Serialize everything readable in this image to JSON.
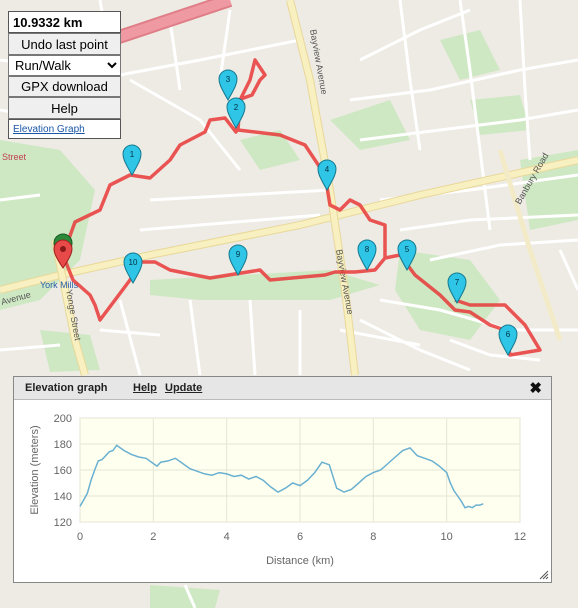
{
  "panel": {
    "distance": "10.9332 km",
    "undo_label": "Undo last point",
    "mode_selected": "Run/Walk",
    "mode_options": [
      "Run/Walk"
    ],
    "gpx_label": "GPX download",
    "help_label": "Help",
    "elevation_link": "Elevation Graph"
  },
  "map": {
    "street_labels": [
      "Bayview Avenue",
      "Bayview Avenue",
      "Yonge Street",
      "York Mills",
      "Banbury Road",
      "Avenue",
      "Street"
    ],
    "markers": [
      "1",
      "2",
      "3",
      "4",
      "5",
      "6",
      "7",
      "8",
      "9",
      "10"
    ],
    "route_color": "#e83a3a",
    "marker_color": "#2ec5e6"
  },
  "dialog": {
    "title": "Elevation graph",
    "help": "Help",
    "update": "Update",
    "close_icon": "close-icon"
  },
  "chart_data": {
    "type": "line",
    "title": "",
    "xlabel": "Distance (km)",
    "ylabel": "Elevation (meters)",
    "xlim": [
      0,
      12
    ],
    "ylim": [
      120,
      200
    ],
    "x_ticks": [
      0,
      2,
      4,
      6,
      8,
      10,
      12
    ],
    "y_ticks": [
      120,
      140,
      160,
      180,
      200
    ],
    "grid": true,
    "series": [
      {
        "color": "#6ab0d0",
        "x": [
          0,
          0.1,
          0.2,
          0.3,
          0.4,
          0.5,
          0.6,
          0.7,
          0.8,
          0.9,
          1.0,
          1.1,
          1.2,
          1.4,
          1.6,
          1.8,
          2.0,
          2.1,
          2.2,
          2.4,
          2.6,
          2.8,
          3.0,
          3.2,
          3.4,
          3.6,
          3.8,
          4.0,
          4.2,
          4.4,
          4.6,
          4.8,
          5.0,
          5.2,
          5.4,
          5.6,
          5.8,
          6.0,
          6.2,
          6.4,
          6.6,
          6.8,
          7.0,
          7.2,
          7.4,
          7.6,
          7.8,
          8.0,
          8.2,
          8.4,
          8.6,
          8.8,
          9.0,
          9.2,
          9.4,
          9.6,
          9.8,
          10.0,
          10.1,
          10.2,
          10.3,
          10.4,
          10.5,
          10.6,
          10.7,
          10.8,
          10.9,
          11.0
        ],
        "y": [
          132,
          137,
          142,
          152,
          160,
          167,
          168,
          171,
          174,
          175,
          179,
          177,
          175,
          172,
          170,
          169,
          165,
          163,
          166,
          167,
          169,
          165,
          161,
          159,
          157,
          156,
          158,
          157,
          155,
          156,
          153,
          155,
          152,
          147,
          143,
          146,
          150,
          148,
          152,
          158,
          166,
          164,
          146,
          143,
          145,
          150,
          155,
          158,
          160,
          165,
          170,
          175,
          177,
          171,
          169,
          167,
          163,
          158,
          150,
          144,
          140,
          136,
          131,
          132,
          131,
          133,
          133,
          134
        ]
      }
    ]
  }
}
